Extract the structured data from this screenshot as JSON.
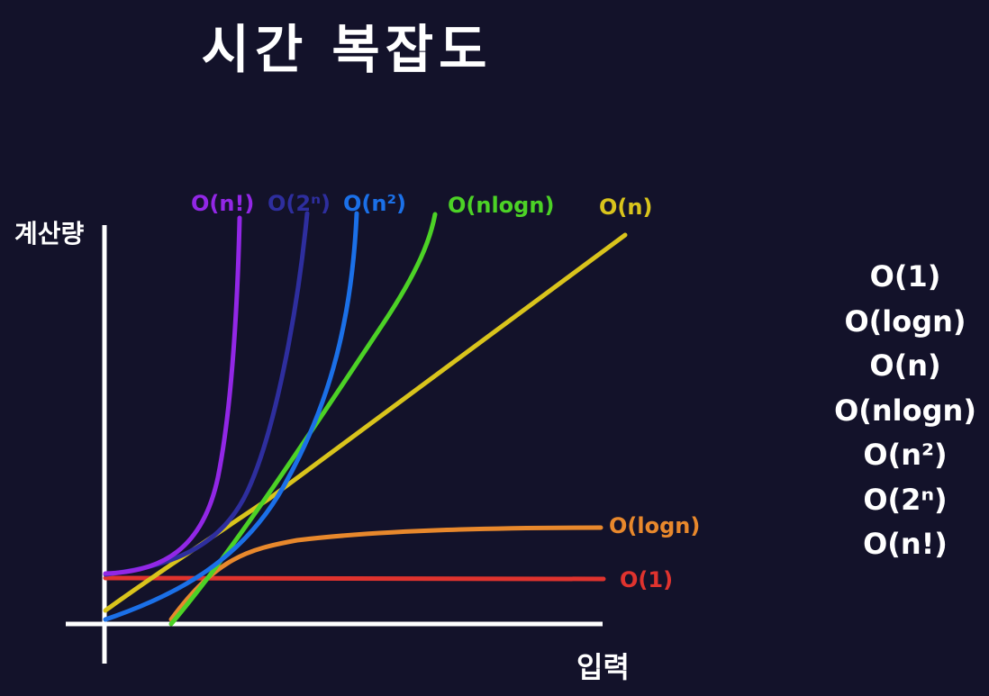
{
  "title": "시간 복잡도",
  "ranking": [
    "O(1)",
    "O(logn)",
    "O(n)",
    "O(nlogn)",
    "O(n²)",
    "O(2ⁿ)",
    "O(n!)"
  ],
  "chart_data": {
    "type": "line",
    "title": "시간 복잡도",
    "xlabel": "입력",
    "ylabel": "계산량",
    "grid": false,
    "legend": "none",
    "series": [
      {
        "name": "O(1)",
        "color": "#e0332e"
      },
      {
        "name": "O(logn)",
        "color": "#e8882c"
      },
      {
        "name": "O(n)",
        "color": "#d9c41c"
      },
      {
        "name": "O(nlogn)",
        "color": "#4cd226"
      },
      {
        "name": "O(n²)",
        "color": "#1b70e8"
      },
      {
        "name": "O(2ⁿ)",
        "color": "#2e2e9e"
      },
      {
        "name": "O(n!)",
        "color": "#9227e6"
      }
    ]
  }
}
